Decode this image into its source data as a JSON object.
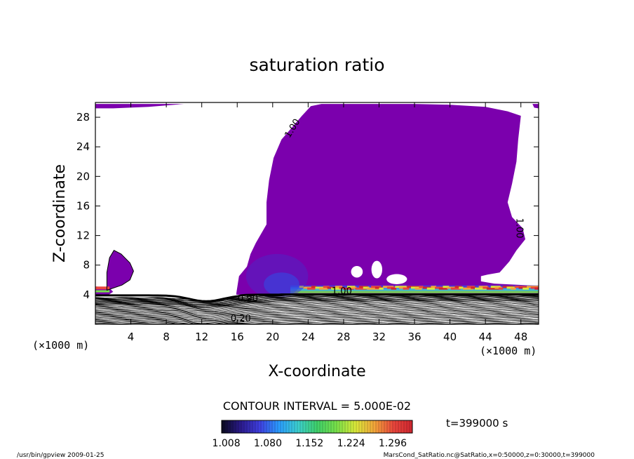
{
  "chart_data": {
    "type": "heatmap",
    "title": "saturation ratio",
    "xlabel": "X-coordinate",
    "ylabel": "Z-coordinate",
    "x_unit": "(×1000 m)",
    "z_unit": "(×1000 m)",
    "xlim": [
      0,
      50
    ],
    "ylim": [
      0,
      30
    ],
    "x_ticks": [
      4,
      8,
      12,
      16,
      20,
      24,
      28,
      32,
      36,
      40,
      44,
      48
    ],
    "y_ticks": [
      4,
      8,
      12,
      16,
      20,
      24,
      28
    ],
    "contour_interval_text": "CONTOUR INTERVAL = 5.000E-02",
    "time_text": "t=399000 s",
    "colorbar": {
      "min": 1.0,
      "max": 1.33,
      "tick_values": [
        1.008,
        1.08,
        1.152,
        1.224,
        1.296
      ],
      "tick_labels": [
        "1.008",
        "1.080",
        "1.152",
        "1.224",
        "1.296"
      ],
      "colors": [
        "#0a0a1e",
        "#2b1a8c",
        "#3f3fe0",
        "#2a9cff",
        "#3ccfcf",
        "#3fd06a",
        "#77e04a",
        "#d9e93a",
        "#f3a63a",
        "#e9463c",
        "#cf2630"
      ]
    },
    "fill_color": "#7b00ad",
    "contour_labels": [
      {
        "text": "1.00",
        "x": 22.5,
        "y": 26.3,
        "rotate": -58
      },
      {
        "text": "1.00",
        "x": 47.5,
        "y": 13.0,
        "rotate": 90
      },
      {
        "text": "1.00",
        "x": 27.8,
        "y": 4.1,
        "rotate": 0
      },
      {
        "text": "0.90",
        "x": 17.2,
        "y": 3.1,
        "rotate": 0
      },
      {
        "text": "0.20",
        "x": 16.4,
        "y": 0.4,
        "rotate": 0
      }
    ]
  },
  "footer": {
    "left": "/usr/bin/gpview  2009-01-25",
    "right": "MarsCond_SatRatio.nc@SatRatio,x=0:50000,z=0:30000,t=399000"
  }
}
